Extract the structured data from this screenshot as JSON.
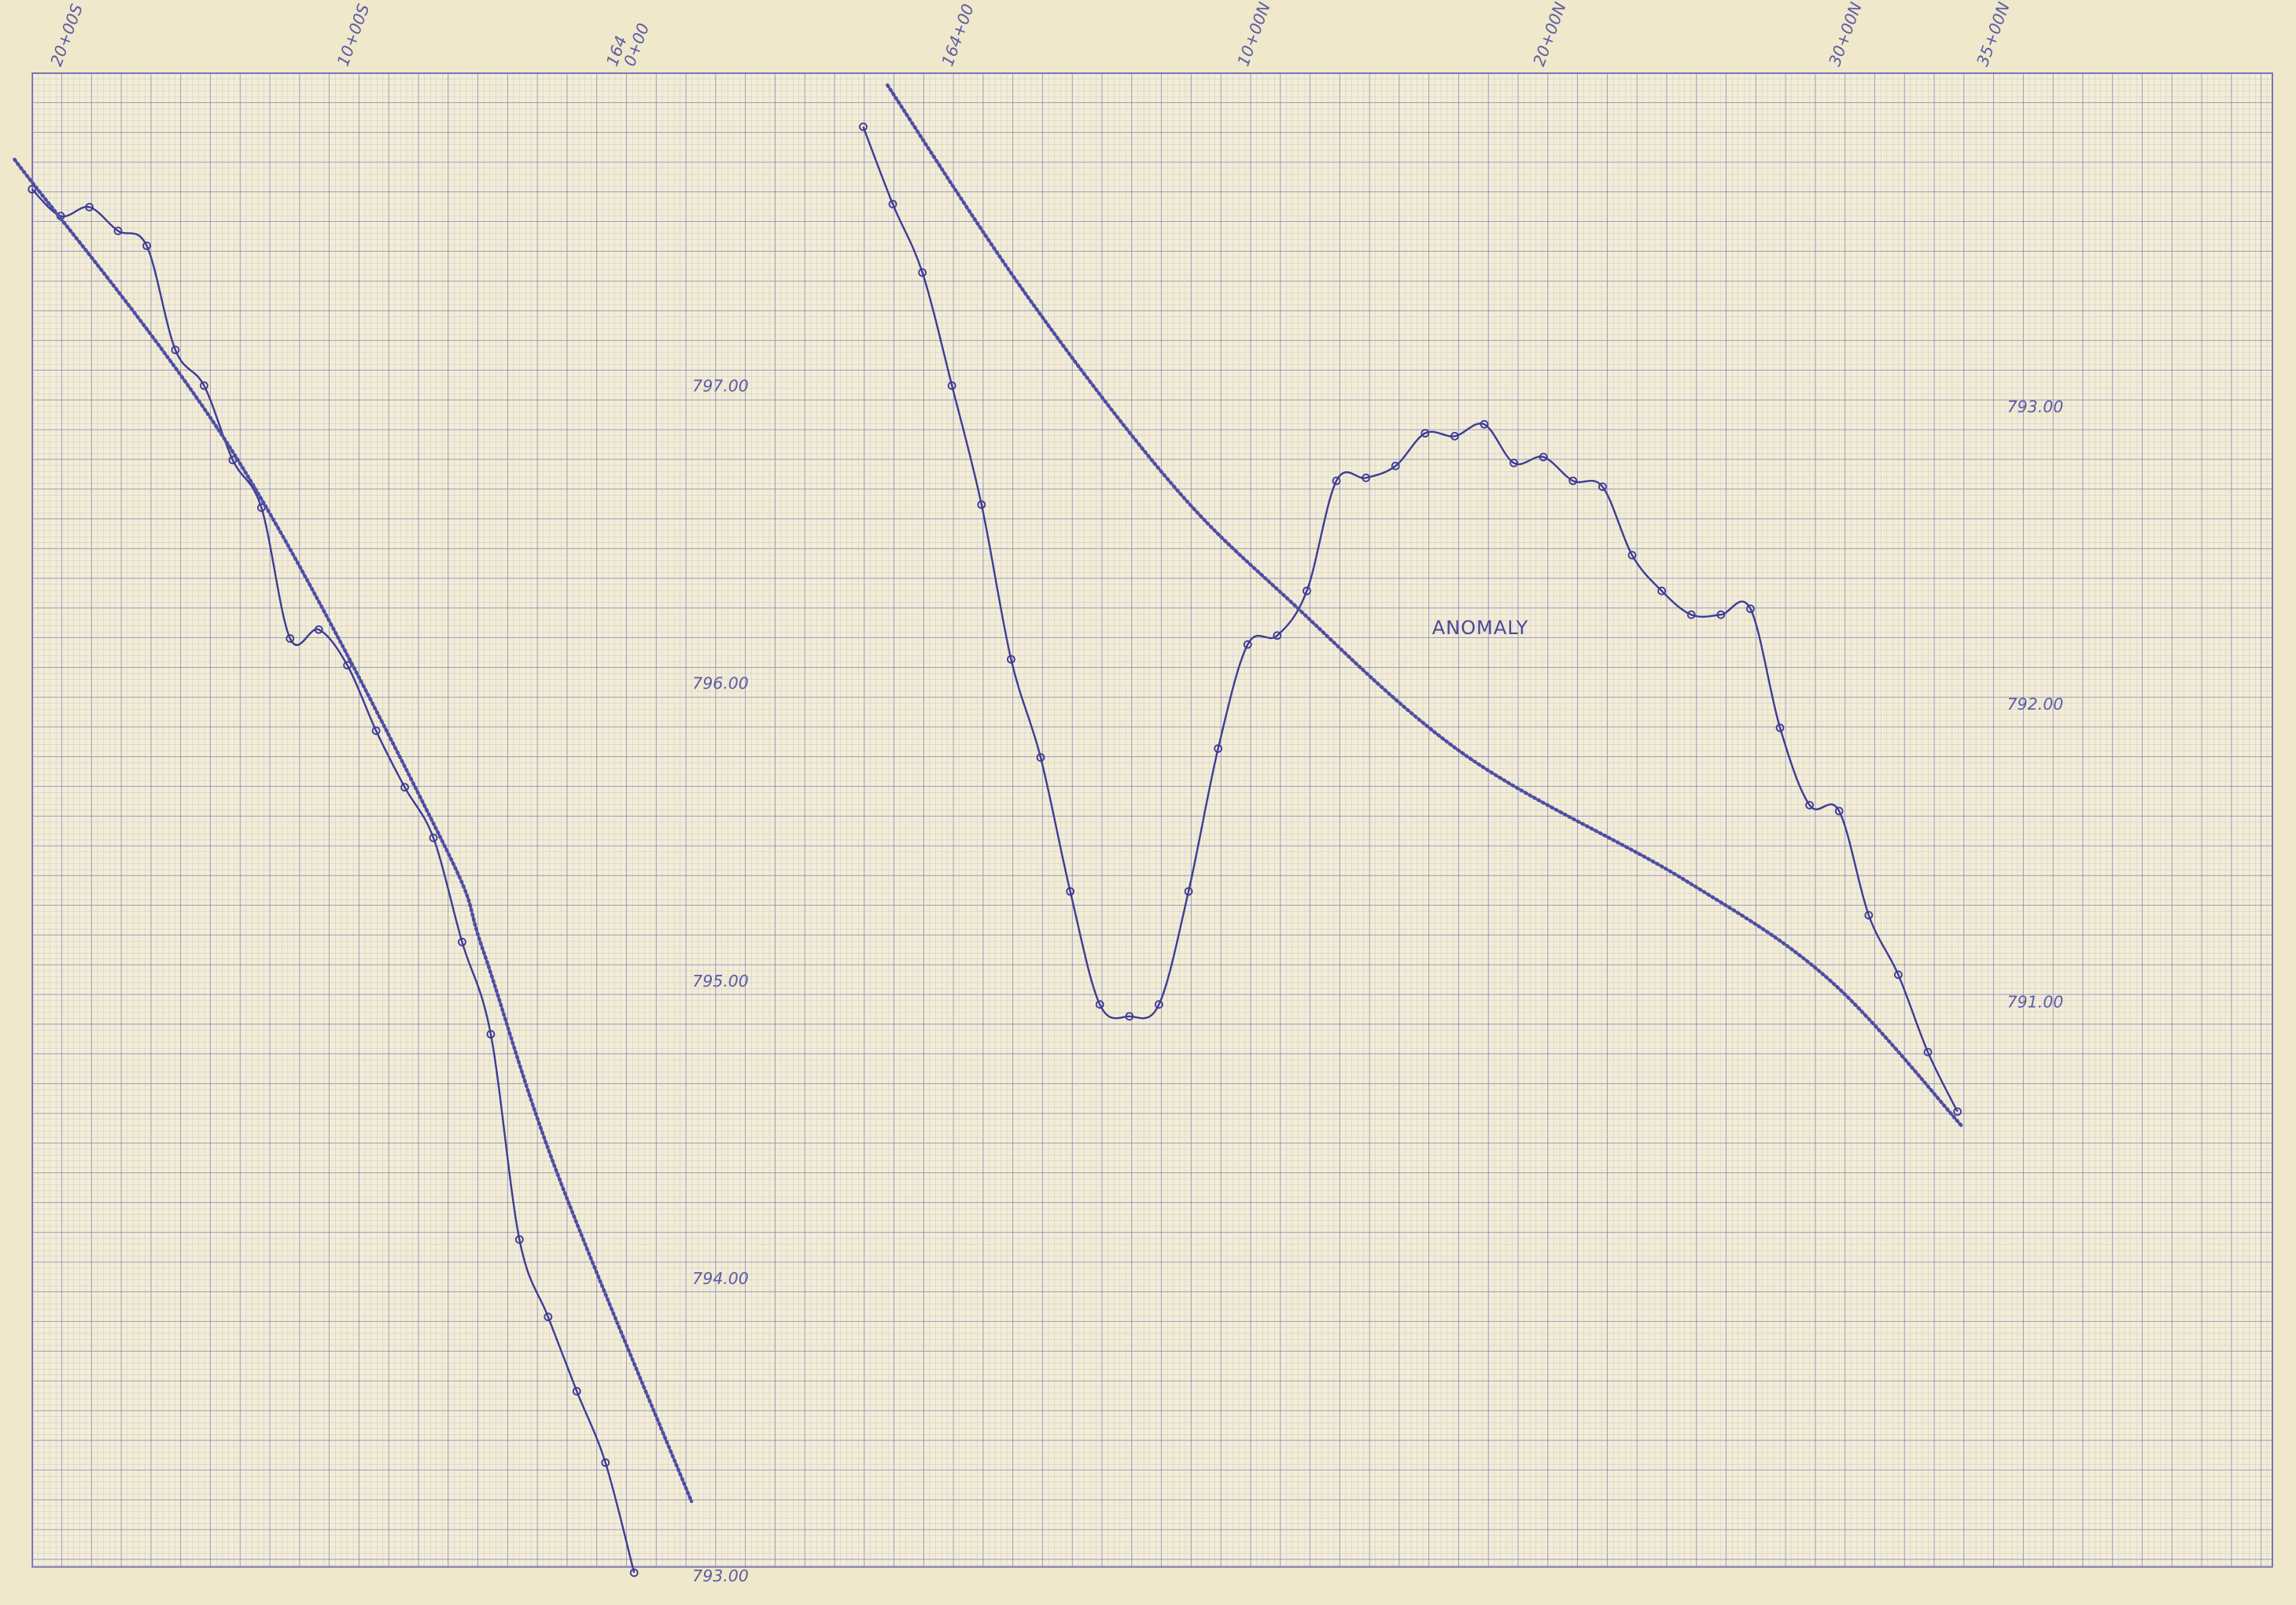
{
  "chart_data": [
    {
      "type": "line",
      "xlim": [
        -21.6,
        2.4
      ],
      "ylim": [
        793,
        798.05
      ],
      "xticks": [
        {
          "value": -20,
          "label": "20+00S"
        },
        {
          "value": -10,
          "label": "10+00S"
        },
        {
          "value": 0,
          "label": "0+00"
        }
      ],
      "line_label": "164",
      "yticks": [
        {
          "value": 797,
          "label": "797.00"
        },
        {
          "value": 796,
          "label": "796.00"
        },
        {
          "value": 795,
          "label": "795.00"
        },
        {
          "value": 794,
          "label": "794.00"
        },
        {
          "value": 793,
          "label": "793.00"
        }
      ],
      "series": [
        {
          "color": "#3e3d95",
          "line_style": "solid",
          "markers": true,
          "x": [
            -21,
            -20,
            -19,
            -18,
            -17,
            -16,
            -15,
            -14,
            -13,
            -12,
            -11,
            -10,
            -9,
            -8,
            -7,
            -6,
            -5,
            -4,
            -3,
            -2,
            -1,
            0
          ],
          "values": [
            797.66,
            797.57,
            797.6,
            797.52,
            797.47,
            797.12,
            797.0,
            796.75,
            796.59,
            796.15,
            796.18,
            796.06,
            795.84,
            795.65,
            795.48,
            795.13,
            794.82,
            794.13,
            793.87,
            793.62,
            793.38,
            793.01
          ]
        },
        {
          "color": "#4f4ea3",
          "line_style": "dotted",
          "markers": false,
          "x": [
            -21.61,
            -13.95,
            -6.8,
            -5.26,
            -2.71,
            2.0
          ],
          "values": [
            797.76,
            796.77,
            795.49,
            795.1,
            794.36,
            793.25
          ]
        }
      ]
    },
    {
      "type": "line",
      "xlim": [
        -4.46,
        44.65
      ],
      "ylim": [
        789.07,
        794.12
      ],
      "xticks": [
        {
          "value": 0,
          "label": "164+00"
        },
        {
          "value": 10,
          "label": "10+00N"
        },
        {
          "value": 20,
          "label": "20+00N"
        },
        {
          "value": 30,
          "label": "30+00N"
        },
        {
          "value": 35,
          "label": "35+00N"
        }
      ],
      "yticks": [
        {
          "value": 793,
          "label": "793.00"
        },
        {
          "value": 792,
          "label": "792.00"
        },
        {
          "value": 791,
          "label": "791.00"
        }
      ],
      "annotation": "ANOMALY",
      "series": [
        {
          "color": "#3e3d95",
          "line_style": "solid",
          "markers": true,
          "x": [
            -3,
            -2,
            -1,
            0,
            1,
            2,
            3,
            4,
            5,
            6,
            7,
            8,
            9,
            10,
            11,
            12,
            13,
            14,
            15,
            16,
            17,
            18,
            19,
            20,
            21,
            22,
            23,
            24,
            25,
            26,
            27,
            28,
            29,
            30,
            31,
            32,
            33,
            34
          ],
          "values": [
            793.94,
            793.68,
            793.45,
            793.07,
            792.67,
            792.15,
            791.82,
            791.37,
            790.99,
            790.95,
            790.99,
            791.37,
            791.85,
            792.2,
            792.23,
            792.38,
            792.75,
            792.76,
            792.8,
            792.91,
            792.9,
            792.94,
            792.81,
            792.83,
            792.75,
            792.73,
            792.5,
            792.38,
            792.3,
            792.3,
            792.32,
            791.92,
            791.66,
            791.64,
            791.29,
            791.09,
            790.83,
            790.63
          ]
        },
        {
          "color": "#4f4ea3",
          "line_style": "dotted",
          "markers": false,
          "x": [
            -2.18,
            2.48,
            7.43,
            11.39,
            17.33,
            24.75,
            29.7,
            34.16
          ],
          "values": [
            794.08,
            793.38,
            792.74,
            792.35,
            791.83,
            791.41,
            791.07,
            790.58
          ]
        }
      ]
    }
  ]
}
